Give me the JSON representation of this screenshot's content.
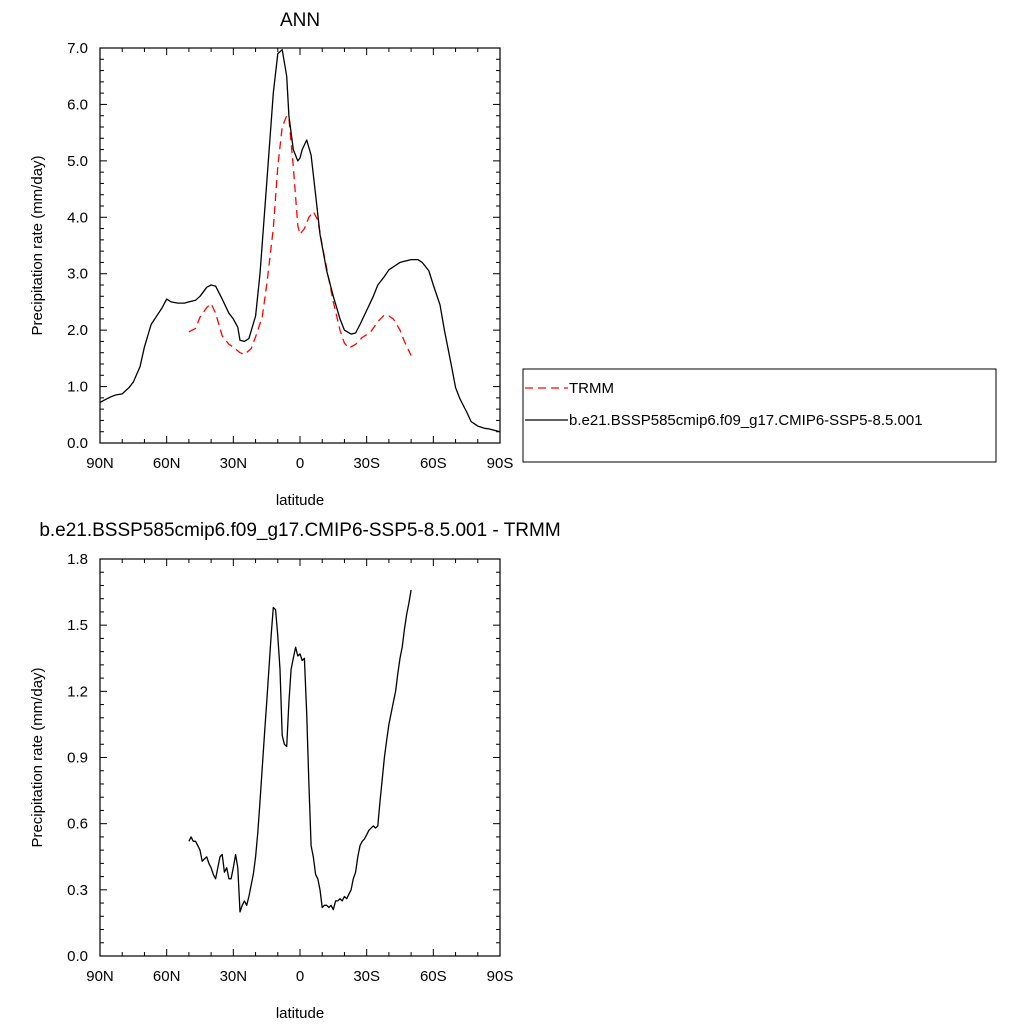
{
  "chart_data": [
    {
      "type": "line",
      "title": "ANN",
      "xlabel": "latitude",
      "ylabel": "Precipitation rate (mm/day)",
      "xlim": [
        90,
        -90
      ],
      "ylim": [
        0,
        7
      ],
      "x_tick_values": [
        90,
        60,
        30,
        0,
        -30,
        -60,
        -90
      ],
      "x_tick_labels": [
        "90N",
        "60N",
        "30N",
        "0",
        "30S",
        "60S",
        "90S"
      ],
      "y_tick_values": [
        0,
        1,
        2,
        3,
        4,
        5,
        6,
        7
      ],
      "y_tick_labels": [
        "0.0",
        "1.0",
        "2.0",
        "3.0",
        "4.0",
        "5.0",
        "6.0",
        "7.0"
      ],
      "legend": {
        "position": "right",
        "entries": [
          "TRMM",
          "b.e21.BSSP585cmip6.f09_g17.CMIP6-SSP5-8.5.001"
        ]
      },
      "series": [
        {
          "name": "TRMM",
          "color": "#ff0000",
          "dash": true,
          "x": [
            50,
            47,
            45,
            42,
            40,
            38,
            35,
            32,
            30,
            27,
            25,
            22,
            20,
            17,
            15,
            12,
            10,
            8,
            6,
            5,
            3,
            1,
            0,
            -2,
            -4,
            -6,
            -8,
            -10,
            -12,
            -15,
            -18,
            -20,
            -22,
            -25,
            -28,
            -30,
            -32,
            -35,
            -38,
            -40,
            -42,
            -45,
            -47,
            -50
          ],
          "y": [
            1.97,
            2.03,
            2.23,
            2.4,
            2.47,
            2.3,
            1.9,
            1.75,
            1.7,
            1.6,
            1.57,
            1.67,
            1.88,
            2.23,
            2.8,
            3.8,
            4.9,
            5.6,
            5.8,
            5.75,
            4.9,
            3.85,
            3.7,
            3.8,
            4.0,
            4.1,
            3.95,
            3.5,
            3.1,
            2.5,
            2.0,
            1.77,
            1.68,
            1.75,
            1.87,
            1.92,
            1.98,
            2.15,
            2.27,
            2.25,
            2.2,
            2.0,
            1.8,
            1.55
          ]
        },
        {
          "name": "b.e21.BSSP585cmip6.f09_g17.CMIP6-SSP5-8.5.001",
          "color": "#000000",
          "dash": false,
          "x": [
            90,
            88,
            85,
            83,
            80,
            77,
            75,
            72,
            70,
            67,
            65,
            62,
            60,
            58,
            55,
            52,
            50,
            47,
            45,
            42,
            40,
            38,
            35,
            32,
            30,
            28,
            27,
            25,
            23,
            20,
            18,
            15,
            12,
            10,
            8,
            6,
            5,
            3,
            1,
            0,
            -1,
            -3,
            -5,
            -7,
            -9,
            -12,
            -15,
            -18,
            -20,
            -23,
            -25,
            -27,
            -30,
            -33,
            -35,
            -38,
            -40,
            -45,
            -50,
            -53,
            -55,
            -58,
            -60,
            -63,
            -65,
            -68,
            -70,
            -72,
            -75,
            -77,
            -80,
            -83,
            -85,
            -88,
            -90
          ],
          "y": [
            0.72,
            0.76,
            0.82,
            0.85,
            0.87,
            0.98,
            1.08,
            1.35,
            1.7,
            2.1,
            2.22,
            2.4,
            2.55,
            2.5,
            2.48,
            2.48,
            2.5,
            2.53,
            2.6,
            2.76,
            2.8,
            2.78,
            2.55,
            2.3,
            2.2,
            2.05,
            1.82,
            1.8,
            1.85,
            2.25,
            3.0,
            4.6,
            6.2,
            6.9,
            6.97,
            6.5,
            5.8,
            5.2,
            5.0,
            5.05,
            5.2,
            5.37,
            5.1,
            4.4,
            3.7,
            3.05,
            2.6,
            2.2,
            2.0,
            1.93,
            1.95,
            2.1,
            2.35,
            2.6,
            2.8,
            2.95,
            3.07,
            3.2,
            3.25,
            3.25,
            3.2,
            3.05,
            2.8,
            2.45,
            2.0,
            1.4,
            0.98,
            0.78,
            0.55,
            0.38,
            0.3,
            0.26,
            0.25,
            0.22,
            0.2
          ]
        }
      ]
    },
    {
      "type": "line",
      "title": "b.e21.BSSP585cmip6.f09_g17.CMIP6-SSP5-8.5.001 - TRMM",
      "xlabel": "latitude",
      "ylabel": "Precipitation rate (mm/day)",
      "xlim": [
        90,
        -90
      ],
      "ylim": [
        0,
        1.8
      ],
      "x_tick_values": [
        90,
        60,
        30,
        0,
        -30,
        -60,
        -90
      ],
      "x_tick_labels": [
        "90N",
        "60N",
        "30N",
        "0",
        "30S",
        "60S",
        "90S"
      ],
      "y_tick_values": [
        0,
        0.3,
        0.6,
        0.9,
        1.2,
        1.5,
        1.8
      ],
      "y_tick_labels": [
        "0.0",
        "0.3",
        "0.6",
        "0.9",
        "1.2",
        "1.5",
        "1.8"
      ],
      "series": [
        {
          "color": "#000000",
          "dash": false,
          "x": [
            50,
            49,
            48,
            47,
            46,
            45,
            44,
            43,
            42,
            41,
            40,
            39,
            38,
            37,
            36,
            35,
            34,
            33,
            32,
            31,
            30,
            29,
            28,
            27,
            26,
            25,
            24,
            23,
            22,
            21,
            20,
            19,
            18,
            17,
            16,
            15,
            14,
            13,
            12,
            11,
            10,
            9,
            8,
            7,
            6,
            5,
            4,
            3,
            2,
            1,
            0,
            -1,
            -2,
            -3,
            -4,
            -5,
            -6,
            -7,
            -8,
            -9,
            -10,
            -11,
            -12,
            -13,
            -14,
            -15,
            -16,
            -17,
            -18,
            -19,
            -20,
            -21,
            -22,
            -23,
            -24,
            -25,
            -26,
            -27,
            -28,
            -29,
            -30,
            -31,
            -32,
            -33,
            -34,
            -35,
            -36,
            -37,
            -38,
            -39,
            -40,
            -41,
            -42,
            -43,
            -44,
            -45,
            -46,
            -47,
            -48,
            -49,
            -50
          ],
          "y": [
            0.52,
            0.54,
            0.52,
            0.52,
            0.5,
            0.48,
            0.43,
            0.44,
            0.45,
            0.42,
            0.4,
            0.37,
            0.35,
            0.4,
            0.45,
            0.46,
            0.38,
            0.4,
            0.35,
            0.35,
            0.4,
            0.46,
            0.4,
            0.2,
            0.23,
            0.25,
            0.23,
            0.27,
            0.32,
            0.37,
            0.45,
            0.56,
            0.7,
            0.85,
            1.0,
            1.15,
            1.3,
            1.45,
            1.58,
            1.57,
            1.45,
            1.3,
            1.0,
            0.96,
            0.95,
            1.15,
            1.3,
            1.35,
            1.4,
            1.36,
            1.37,
            1.34,
            1.35,
            1.1,
            0.78,
            0.5,
            0.45,
            0.37,
            0.35,
            0.3,
            0.22,
            0.23,
            0.23,
            0.22,
            0.23,
            0.21,
            0.25,
            0.25,
            0.26,
            0.25,
            0.27,
            0.26,
            0.28,
            0.3,
            0.35,
            0.38,
            0.45,
            0.5,
            0.52,
            0.53,
            0.55,
            0.57,
            0.58,
            0.59,
            0.58,
            0.59,
            0.7,
            0.8,
            0.9,
            0.98,
            1.05,
            1.1,
            1.15,
            1.2,
            1.28,
            1.35,
            1.4,
            1.48,
            1.55,
            1.6,
            1.66
          ]
        }
      ]
    }
  ]
}
